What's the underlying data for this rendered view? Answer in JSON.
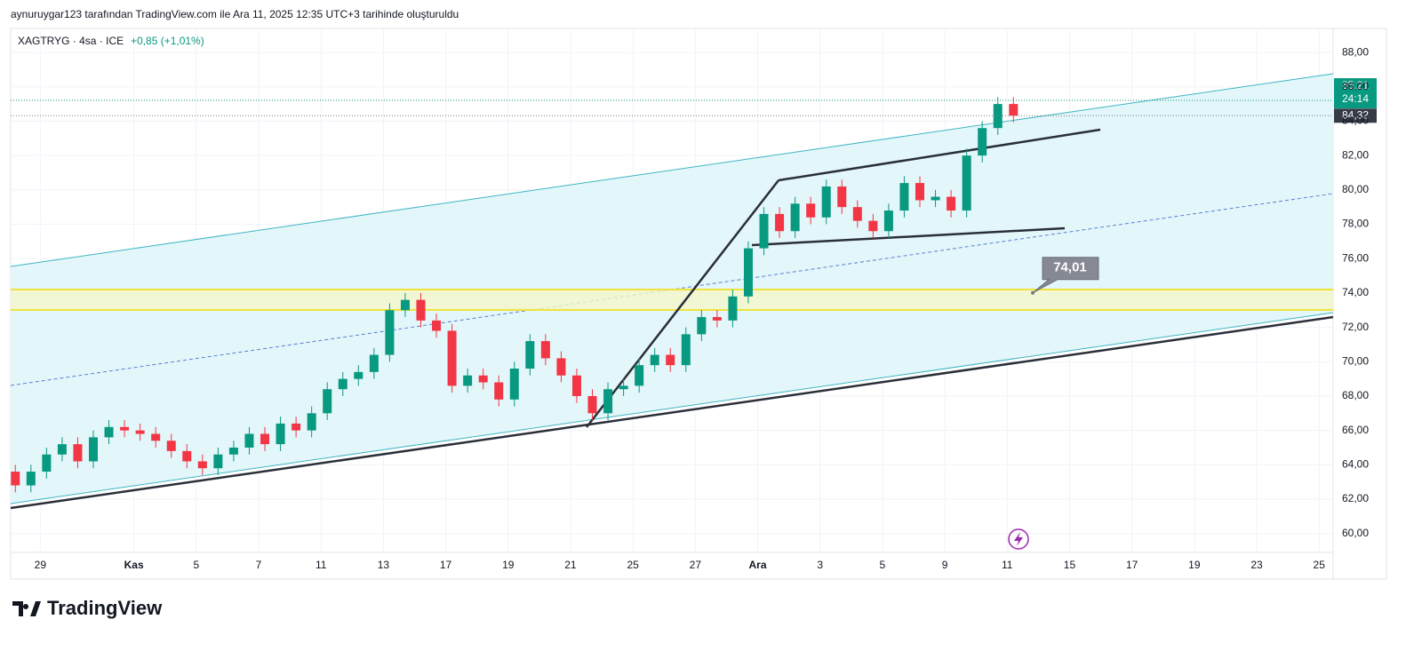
{
  "header": "aynuruygar123 tarafından TradingView.com ile Ara 11, 2025 12:35 UTC+3 tarihinde oluşturuldu",
  "brand": "TradingView",
  "chart_data": {
    "type": "candlestick",
    "symbol": "XAGTRYG · 4sa · ICE",
    "change": "+0,85 (+1,01%)",
    "up_color": "#089981",
    "down_color": "#f23645",
    "ylim": [
      58.9,
      89.4
    ],
    "yticks": [
      {
        "value": 60,
        "label": "60,00"
      },
      {
        "value": 62,
        "label": "62,00"
      },
      {
        "value": 64,
        "label": "64,00"
      },
      {
        "value": 66,
        "label": "66,00"
      },
      {
        "value": 68,
        "label": "68,00"
      },
      {
        "value": 70,
        "label": "70,00"
      },
      {
        "value": 72,
        "label": "72,00"
      },
      {
        "value": 74,
        "label": "74,00"
      },
      {
        "value": 76,
        "label": "76,00"
      },
      {
        "value": 78,
        "label": "78,00"
      },
      {
        "value": 80,
        "label": "80,00"
      },
      {
        "value": 82,
        "label": "82,00"
      },
      {
        "value": 84,
        "label": "84,00"
      },
      {
        "value": 86,
        "label": "86,00"
      },
      {
        "value": 88,
        "label": "88,00"
      }
    ],
    "xlim": [
      -0.95,
      41.45
    ],
    "xticks": [
      {
        "value": 0,
        "label": "29"
      },
      {
        "value": 3,
        "label": "Kas"
      },
      {
        "value": 5,
        "label": "5"
      },
      {
        "value": 7,
        "label": "7"
      },
      {
        "value": 9,
        "label": "11"
      },
      {
        "value": 11,
        "label": "13"
      },
      {
        "value": 13,
        "label": "17"
      },
      {
        "value": 15,
        "label": "19"
      },
      {
        "value": 17,
        "label": "21"
      },
      {
        "value": 19,
        "label": "25"
      },
      {
        "value": 21,
        "label": "27"
      },
      {
        "value": 23,
        "label": "Ara"
      },
      {
        "value": 25,
        "label": "3"
      },
      {
        "value": 27,
        "label": "5"
      },
      {
        "value": 29,
        "label": "9"
      },
      {
        "value": 31,
        "label": "11"
      },
      {
        "value": 33,
        "label": "15"
      },
      {
        "value": 35,
        "label": "17"
      },
      {
        "value": 37,
        "label": "19"
      },
      {
        "value": 39,
        "label": "23"
      },
      {
        "value": 41,
        "label": "25"
      }
    ],
    "candles": {
      "x": [
        -0.8,
        -0.3,
        0.2,
        0.7,
        1.2,
        1.7,
        2.2,
        2.7,
        3.2,
        3.7,
        4.2,
        4.7,
        5.2,
        5.7,
        6.2,
        6.7,
        7.2,
        7.7,
        8.2,
        8.7,
        9.2,
        9.7,
        10.2,
        10.7,
        11.2,
        11.7,
        12.2,
        12.7,
        13.2,
        13.7,
        14.2,
        14.7,
        15.2,
        15.7,
        16.2,
        16.7,
        17.2,
        17.7,
        18.2,
        18.7,
        19.2,
        19.7,
        20.2,
        20.7,
        21.2,
        21.7,
        22.2,
        22.7,
        23.2,
        23.7,
        24.2,
        24.7,
        25.2,
        25.7,
        26.2,
        26.7,
        27.2,
        27.7,
        28.2,
        28.7,
        29.2,
        29.7,
        30.2,
        30.7,
        31.2
      ],
      "open": [
        63.6,
        62.8,
        63.6,
        64.6,
        65.2,
        64.2,
        65.6,
        66.2,
        66.0,
        65.8,
        65.4,
        64.8,
        64.2,
        63.8,
        64.6,
        65.0,
        65.8,
        65.2,
        66.4,
        66.0,
        67.0,
        68.4,
        69.0,
        69.4,
        70.4,
        73.0,
        73.6,
        72.4,
        71.8,
        68.6,
        69.2,
        68.8,
        67.8,
        69.6,
        71.2,
        70.2,
        69.2,
        68.0,
        67.0,
        68.4,
        68.6,
        69.8,
        70.4,
        69.8,
        71.6,
        72.6,
        72.4,
        73.8,
        76.6,
        78.6,
        77.6,
        79.2,
        78.4,
        80.2,
        79.0,
        78.2,
        77.6,
        78.8,
        80.4,
        79.4,
        79.6,
        78.8,
        82.0,
        83.6,
        85.0
      ],
      "high": [
        64.0,
        64.0,
        65.0,
        65.6,
        65.6,
        66.0,
        66.6,
        66.6,
        66.4,
        66.2,
        65.8,
        65.2,
        64.6,
        65.0,
        65.4,
        66.2,
        66.2,
        66.8,
        66.8,
        67.4,
        68.8,
        69.4,
        69.8,
        70.8,
        73.4,
        74.0,
        74.0,
        72.8,
        72.2,
        69.6,
        69.6,
        69.2,
        70.0,
        71.6,
        71.6,
        70.6,
        69.6,
        68.4,
        68.8,
        69.0,
        70.2,
        70.8,
        70.8,
        72.0,
        73.0,
        73.0,
        74.2,
        77.0,
        79.0,
        79.0,
        79.6,
        79.6,
        80.6,
        80.6,
        79.4,
        78.6,
        79.2,
        80.8,
        80.8,
        80.0,
        80.0,
        82.4,
        84.0,
        85.4,
        85.4
      ],
      "low": [
        62.4,
        62.4,
        63.2,
        64.2,
        63.8,
        63.8,
        65.2,
        65.6,
        65.4,
        65.0,
        64.4,
        63.8,
        63.4,
        63.4,
        64.2,
        64.6,
        64.8,
        64.8,
        65.6,
        65.6,
        66.6,
        68.0,
        68.6,
        69.0,
        70.0,
        72.6,
        72.0,
        71.4,
        68.2,
        68.2,
        68.4,
        67.4,
        67.4,
        69.2,
        69.8,
        68.8,
        67.6,
        66.6,
        66.6,
        68.0,
        68.2,
        69.4,
        69.4,
        69.4,
        71.2,
        72.0,
        72.0,
        73.4,
        76.2,
        77.2,
        77.2,
        78.0,
        78.0,
        78.6,
        77.8,
        77.2,
        77.2,
        78.4,
        79.0,
        79.0,
        78.4,
        78.4,
        81.6,
        83.2,
        83.92
      ],
      "close": [
        62.8,
        63.6,
        64.6,
        65.2,
        64.2,
        65.6,
        66.2,
        66.0,
        65.8,
        65.4,
        64.8,
        64.2,
        63.8,
        64.6,
        65.0,
        65.8,
        65.2,
        66.4,
        66.0,
        67.0,
        68.4,
        69.0,
        69.4,
        70.4,
        73.0,
        73.6,
        72.4,
        71.8,
        68.6,
        69.2,
        68.8,
        67.8,
        69.6,
        71.2,
        70.2,
        69.2,
        68.0,
        67.0,
        68.4,
        68.6,
        69.8,
        70.4,
        69.8,
        71.6,
        72.6,
        72.4,
        73.8,
        76.6,
        78.6,
        77.6,
        79.2,
        78.4,
        80.2,
        79.0,
        78.2,
        77.6,
        78.8,
        80.4,
        79.4,
        79.6,
        78.8,
        82.0,
        83.6,
        85.0,
        84.32
      ]
    },
    "last_price": {
      "value": 85.21,
      "label": "85,21"
    },
    "countdown": "24:14",
    "close_price": {
      "value": 84.32,
      "label": "84,32"
    },
    "callout": {
      "value": 74.01,
      "label": "74,01"
    }
  }
}
